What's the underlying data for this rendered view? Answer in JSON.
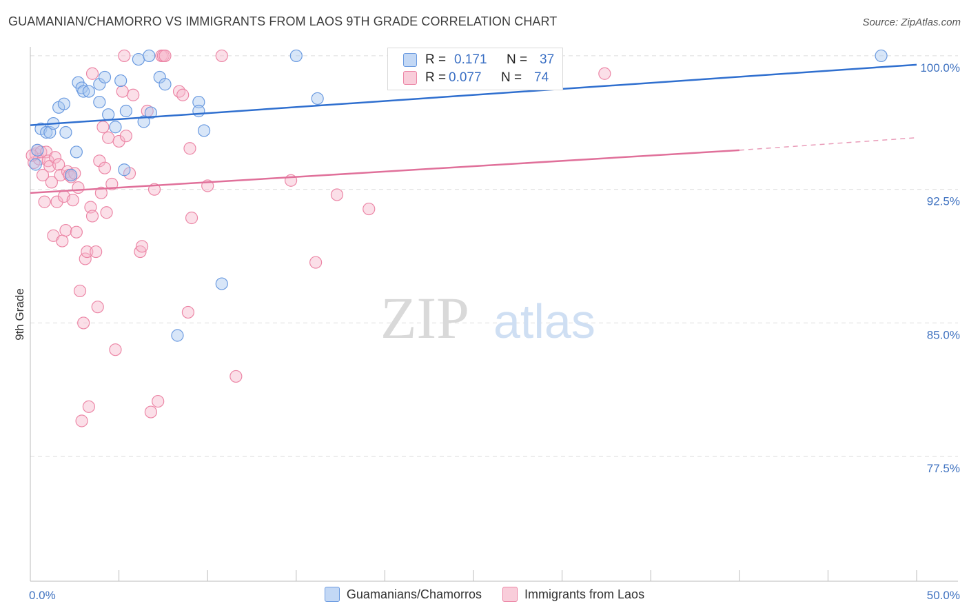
{
  "header": {
    "title": "GUAMANIAN/CHAMORRO VS IMMIGRANTS FROM LAOS 9TH GRADE CORRELATION CHART",
    "source": "Source: ZipAtlas.com"
  },
  "legend": {
    "r_label": "R =",
    "n_label": "N =",
    "series": [
      {
        "r": "0.171",
        "n": "37"
      },
      {
        "r": "0.077",
        "n": "74"
      }
    ]
  },
  "bottom_legend": [
    "Guamanians/Chamorros",
    "Immigrants from Laos"
  ],
  "watermark": {
    "part1": "ZIP",
    "part2": "atlas"
  },
  "colors": {
    "blue_fill": "#a9c8f0",
    "blue_stroke": "#6a9ae0",
    "blue_line": "#2f6fcf",
    "pink_fill": "#f7b8cc",
    "pink_stroke": "#ec86a6",
    "pink_line": "#e0709a",
    "grid": "#dddddd",
    "tick_text": "#3f72c0"
  },
  "chart_data": {
    "type": "scatter",
    "title": "GUAMANIAN/CHAMORRO VS IMMIGRANTS FROM LAOS 9TH GRADE CORRELATION CHART",
    "xlabel": "",
    "ylabel": "9th Grade",
    "xlim": [
      0,
      50
    ],
    "ylim": [
      70.5,
      100.5
    ],
    "x_tick_labels": [
      {
        "value": 0,
        "label": "0.0%"
      },
      {
        "value": 50,
        "label": "50.0%"
      }
    ],
    "y_tick_labels": [
      {
        "value": 100,
        "label": "100.0%"
      },
      {
        "value": 92.5,
        "label": "92.5%"
      },
      {
        "value": 85,
        "label": "85.0%"
      },
      {
        "value": 77.5,
        "label": "77.5%"
      }
    ],
    "grid_y": [
      100,
      92.5,
      85,
      77.5
    ],
    "series": [
      {
        "name": "Guamanians/Chamorros",
        "color": "blue",
        "r": 0.171,
        "n": 37,
        "trend": {
          "x": [
            0,
            50
          ],
          "y": [
            96.1,
            99.5
          ]
        },
        "points": [
          [
            0.3,
            93.9
          ],
          [
            0.4,
            94.7
          ],
          [
            0.6,
            95.9
          ],
          [
            0.9,
            95.7
          ],
          [
            1.1,
            95.7
          ],
          [
            1.3,
            96.2
          ],
          [
            1.6,
            97.1
          ],
          [
            1.9,
            97.3
          ],
          [
            2.0,
            95.7
          ],
          [
            2.3,
            93.3
          ],
          [
            2.6,
            94.6
          ],
          [
            2.7,
            98.5
          ],
          [
            2.9,
            98.2
          ],
          [
            3.0,
            98.0
          ],
          [
            3.3,
            98.0
          ],
          [
            3.9,
            97.4
          ],
          [
            3.9,
            98.4
          ],
          [
            4.2,
            98.8
          ],
          [
            4.4,
            96.7
          ],
          [
            4.8,
            96.0
          ],
          [
            5.1,
            98.6
          ],
          [
            5.3,
            93.6
          ],
          [
            5.4,
            96.9
          ],
          [
            6.1,
            99.8
          ],
          [
            6.4,
            96.3
          ],
          [
            6.7,
            100.0
          ],
          [
            6.8,
            96.8
          ],
          [
            7.3,
            98.8
          ],
          [
            7.6,
            98.4
          ],
          [
            8.3,
            84.3
          ],
          [
            9.5,
            97.4
          ],
          [
            9.5,
            96.9
          ],
          [
            9.8,
            95.8
          ],
          [
            10.8,
            87.2
          ],
          [
            15.0,
            100.0
          ],
          [
            16.2,
            97.6
          ],
          [
            48.0,
            100.0
          ]
        ]
      },
      {
        "name": "Immigrants from Laos",
        "color": "pink",
        "r": 0.077,
        "n": 74,
        "trend": {
          "x": [
            0,
            40
          ],
          "y": [
            92.3,
            94.7
          ]
        },
        "trend_dashed_extension": {
          "x": [
            40,
            50
          ],
          "y": [
            94.7,
            95.4
          ]
        },
        "points": [
          [
            0.2,
            94.0
          ],
          [
            0.3,
            94.5
          ],
          [
            0.4,
            94.7
          ],
          [
            0.5,
            94.2
          ],
          [
            0.6,
            94.6
          ],
          [
            0.7,
            93.3
          ],
          [
            0.8,
            91.8
          ],
          [
            0.9,
            94.6
          ],
          [
            1.0,
            94.1
          ],
          [
            1.1,
            93.8
          ],
          [
            1.2,
            92.9
          ],
          [
            1.3,
            89.9
          ],
          [
            1.4,
            94.3
          ],
          [
            1.5,
            91.8
          ],
          [
            1.6,
            93.9
          ],
          [
            1.7,
            93.3
          ],
          [
            1.8,
            89.6
          ],
          [
            1.9,
            92.1
          ],
          [
            2.0,
            90.2
          ],
          [
            2.1,
            93.5
          ],
          [
            2.2,
            93.3
          ],
          [
            2.3,
            93.2
          ],
          [
            2.4,
            91.9
          ],
          [
            2.5,
            93.4
          ],
          [
            2.6,
            90.1
          ],
          [
            2.7,
            92.6
          ],
          [
            2.8,
            86.8
          ],
          [
            2.9,
            79.5
          ],
          [
            3.0,
            85.0
          ],
          [
            3.1,
            88.6
          ],
          [
            3.2,
            89.0
          ],
          [
            3.3,
            80.3
          ],
          [
            3.4,
            91.5
          ],
          [
            3.5,
            99.0
          ],
          [
            3.5,
            91.0
          ],
          [
            3.7,
            89.0
          ],
          [
            3.8,
            85.9
          ],
          [
            3.9,
            94.1
          ],
          [
            4.0,
            92.3
          ],
          [
            4.1,
            96.0
          ],
          [
            4.2,
            93.7
          ],
          [
            4.3,
            91.2
          ],
          [
            4.4,
            95.4
          ],
          [
            4.6,
            92.8
          ],
          [
            4.8,
            83.5
          ],
          [
            5.0,
            95.2
          ],
          [
            5.2,
            98.0
          ],
          [
            5.3,
            100.0
          ],
          [
            5.4,
            95.5
          ],
          [
            5.6,
            93.4
          ],
          [
            5.8,
            97.8
          ],
          [
            6.2,
            89.0
          ],
          [
            6.3,
            89.3
          ],
          [
            6.6,
            96.9
          ],
          [
            6.8,
            80.0
          ],
          [
            7.0,
            92.5
          ],
          [
            7.2,
            80.6
          ],
          [
            7.4,
            100.0
          ],
          [
            7.5,
            100.0
          ],
          [
            7.6,
            100.0
          ],
          [
            8.4,
            98.0
          ],
          [
            8.6,
            97.8
          ],
          [
            8.9,
            85.6
          ],
          [
            9.0,
            94.8
          ],
          [
            9.1,
            90.9
          ],
          [
            10.0,
            92.7
          ],
          [
            10.8,
            100.0
          ],
          [
            11.6,
            82.0
          ],
          [
            14.7,
            93.0
          ],
          [
            16.1,
            88.4
          ],
          [
            17.3,
            92.2
          ],
          [
            19.1,
            91.4
          ],
          [
            32.4,
            99.0
          ],
          [
            0.1,
            94.4
          ]
        ]
      }
    ]
  }
}
